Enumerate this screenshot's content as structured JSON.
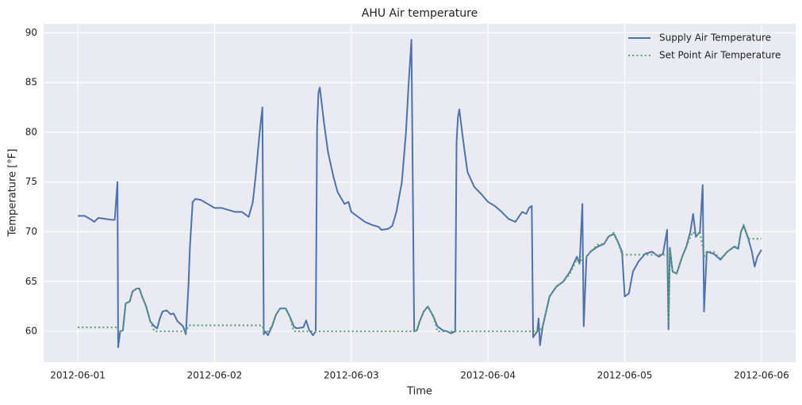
{
  "chart_data": {
    "type": "line",
    "title": "AHU Air temperature",
    "x_label": "Time",
    "y_label": "Temperature [°F]",
    "x": [
      0,
      0.05,
      0.1,
      0.12,
      0.15,
      0.2,
      0.25,
      0.27,
      0.29,
      0.295,
      0.31,
      0.33,
      0.35,
      0.38,
      0.4,
      0.43,
      0.45,
      0.47,
      0.5,
      0.53,
      0.56,
      0.58,
      0.6,
      0.62,
      0.65,
      0.68,
      0.7,
      0.73,
      0.77,
      0.79,
      0.81,
      0.82,
      0.84,
      0.86,
      0.9,
      0.95,
      1.0,
      1.05,
      1.1,
      1.15,
      1.2,
      1.25,
      1.28,
      1.3,
      1.33,
      1.35,
      1.36,
      1.37,
      1.39,
      1.42,
      1.45,
      1.48,
      1.52,
      1.55,
      1.58,
      1.6,
      1.65,
      1.67,
      1.69,
      1.72,
      1.74,
      1.75,
      1.76,
      1.77,
      1.8,
      1.83,
      1.87,
      1.9,
      1.95,
      1.98,
      2.0,
      2.05,
      2.1,
      2.15,
      2.2,
      2.22,
      2.27,
      2.3,
      2.33,
      2.37,
      2.4,
      2.42,
      2.44,
      2.46,
      2.48,
      2.5,
      2.53,
      2.56,
      2.6,
      2.63,
      2.67,
      2.7,
      2.73,
      2.76,
      2.77,
      2.78,
      2.79,
      2.82,
      2.85,
      2.9,
      2.95,
      3.0,
      3.05,
      3.1,
      3.15,
      3.2,
      3.25,
      3.28,
      3.3,
      3.32,
      3.33,
      3.36,
      3.37,
      3.38,
      3.4,
      3.45,
      3.5,
      3.55,
      3.6,
      3.65,
      3.67,
      3.69,
      3.7,
      3.72,
      3.75,
      3.8,
      3.85,
      3.88,
      3.92,
      3.95,
      3.98,
      4.0,
      4.03,
      4.06,
      4.1,
      4.15,
      4.2,
      4.25,
      4.28,
      4.31,
      4.32,
      4.33,
      4.35,
      4.38,
      4.42,
      4.45,
      4.48,
      4.5,
      4.52,
      4.55,
      4.57,
      4.58,
      4.6,
      4.65,
      4.7,
      4.75,
      4.8,
      4.83,
      4.85,
      4.87,
      4.9,
      4.93,
      4.95,
      4.97,
      5.0
    ],
    "series": [
      {
        "name": "Supply Air Temperature",
        "color": "#4c72b0",
        "style": "solid",
        "values": [
          71.6,
          71.6,
          71.2,
          71.0,
          71.4,
          71.3,
          71.2,
          71.2,
          75.0,
          58.4,
          60.0,
          60.1,
          62.8,
          63.0,
          64.0,
          64.3,
          64.3,
          63.5,
          62.5,
          61.0,
          60.5,
          60.3,
          61.3,
          62.0,
          62.1,
          61.7,
          61.8,
          61.0,
          60.5,
          59.7,
          64.8,
          68.5,
          73.0,
          73.3,
          73.2,
          72.8,
          72.4,
          72.4,
          72.2,
          72.0,
          72.0,
          71.5,
          73.0,
          75.5,
          80,
          82.5,
          59.7,
          60.0,
          59.6,
          60.5,
          61.7,
          62.3,
          62.3,
          61.5,
          60.5,
          60.3,
          60.4,
          61.1,
          60.2,
          59.6,
          60.0,
          80.5,
          84.0,
          84.5,
          81.0,
          78.0,
          75.5,
          74.0,
          72.8,
          73.0,
          72.0,
          71.5,
          71.0,
          70.7,
          70.5,
          70.2,
          70.3,
          70.6,
          72.0,
          75.0,
          80.0,
          85.0,
          89.3,
          60.0,
          60.1,
          61.0,
          62.0,
          62.5,
          61.5,
          60.5,
          60.1,
          60.0,
          59.8,
          60.0,
          79.0,
          81.5,
          82.3,
          79.0,
          76.0,
          74.5,
          73.8,
          73.0,
          72.6,
          72.0,
          71.3,
          71.0,
          72.0,
          71.8,
          72.4,
          72.6,
          59.4,
          60.0,
          61.3,
          58.6,
          60.5,
          63.5,
          64.5,
          65.0,
          66.0,
          67.5,
          66.8,
          72.8,
          60.5,
          67.5,
          68.0,
          68.5,
          68.8,
          69.5,
          69.8,
          69.0,
          68.0,
          63.5,
          63.8,
          66.0,
          67.0,
          67.8,
          68.0,
          67.5,
          67.8,
          70.2,
          60.2,
          68.4,
          66.0,
          65.8,
          67.5,
          68.5,
          70.0,
          71.8,
          69.5,
          70.0,
          74.7,
          62.0,
          68.0,
          67.8,
          67.2,
          68.0,
          68.5,
          68.3,
          70.0,
          70.6,
          69.5,
          68.0,
          66.5,
          67.5,
          68.2
        ]
      },
      {
        "name": "Set Point Air Temperature",
        "color": "#55a868",
        "style": "dotted",
        "values": [
          60.4,
          60.4,
          60.4,
          60.4,
          60.4,
          60.4,
          60.4,
          60.4,
          60.4,
          60.0,
          60.0,
          60.3,
          62.8,
          63.0,
          64.0,
          64.3,
          64.3,
          63.5,
          62.5,
          61.0,
          60.0,
          60.0,
          60.0,
          60.0,
          60.0,
          60.0,
          60.0,
          60.0,
          60.0,
          60.0,
          60.6,
          60.6,
          60.6,
          60.6,
          60.6,
          60.6,
          60.6,
          60.6,
          60.6,
          60.6,
          60.6,
          60.6,
          60.6,
          60.6,
          60.6,
          60.6,
          60.0,
          60.0,
          60.0,
          60.5,
          61.7,
          62.3,
          62.3,
          61.5,
          60.0,
          60.0,
          60.0,
          60.0,
          60.0,
          60.0,
          60.0,
          60.0,
          60.0,
          60.0,
          60.0,
          60.0,
          60.0,
          60.0,
          60.0,
          60.0,
          60.0,
          60.0,
          60.0,
          60.0,
          60.0,
          60.0,
          60.0,
          60.0,
          60.0,
          60.0,
          60.0,
          60.0,
          60.0,
          60.0,
          60.1,
          61.0,
          62.0,
          62.5,
          61.5,
          60.0,
          60.0,
          60.0,
          60.0,
          60.0,
          60.0,
          60.0,
          60.0,
          60.0,
          60.0,
          60.0,
          60.0,
          60.0,
          60.0,
          60.0,
          60.0,
          60.0,
          60.0,
          60.0,
          60.0,
          60.0,
          60.0,
          60.0,
          60.0,
          60.0,
          60.5,
          63.5,
          64.5,
          65.0,
          65.8,
          67.3,
          66.8,
          67.5,
          67.5,
          67.5,
          68.0,
          68.7,
          68.8,
          69.5,
          69.9,
          69.0,
          67.7,
          67.7,
          67.7,
          67.7,
          67.7,
          67.7,
          67.7,
          67.7,
          67.7,
          67.7,
          61.0,
          68.0,
          66.0,
          65.8,
          67.5,
          68.5,
          69.5,
          70.0,
          69.5,
          70.0,
          68.5,
          67.5,
          68.0,
          68.0,
          67.3,
          68.0,
          68.5,
          68.5,
          70.0,
          70.7,
          69.3,
          69.3,
          69.3,
          69.3,
          69.3
        ]
      }
    ],
    "xlim": [
      -0.25,
      5.25
    ],
    "xticks": [
      {
        "value": 0,
        "label": "2012-06-01"
      },
      {
        "value": 1,
        "label": "2012-06-02"
      },
      {
        "value": 2,
        "label": "2012-06-03"
      },
      {
        "value": 3,
        "label": "2012-06-04"
      },
      {
        "value": 4,
        "label": "2012-06-05"
      },
      {
        "value": 5,
        "label": "2012-06-06"
      }
    ],
    "ylim": [
      56.9,
      90.9
    ],
    "yticks": [
      60,
      65,
      70,
      75,
      80,
      85,
      90
    ],
    "grid": true,
    "legend": "upper right"
  }
}
